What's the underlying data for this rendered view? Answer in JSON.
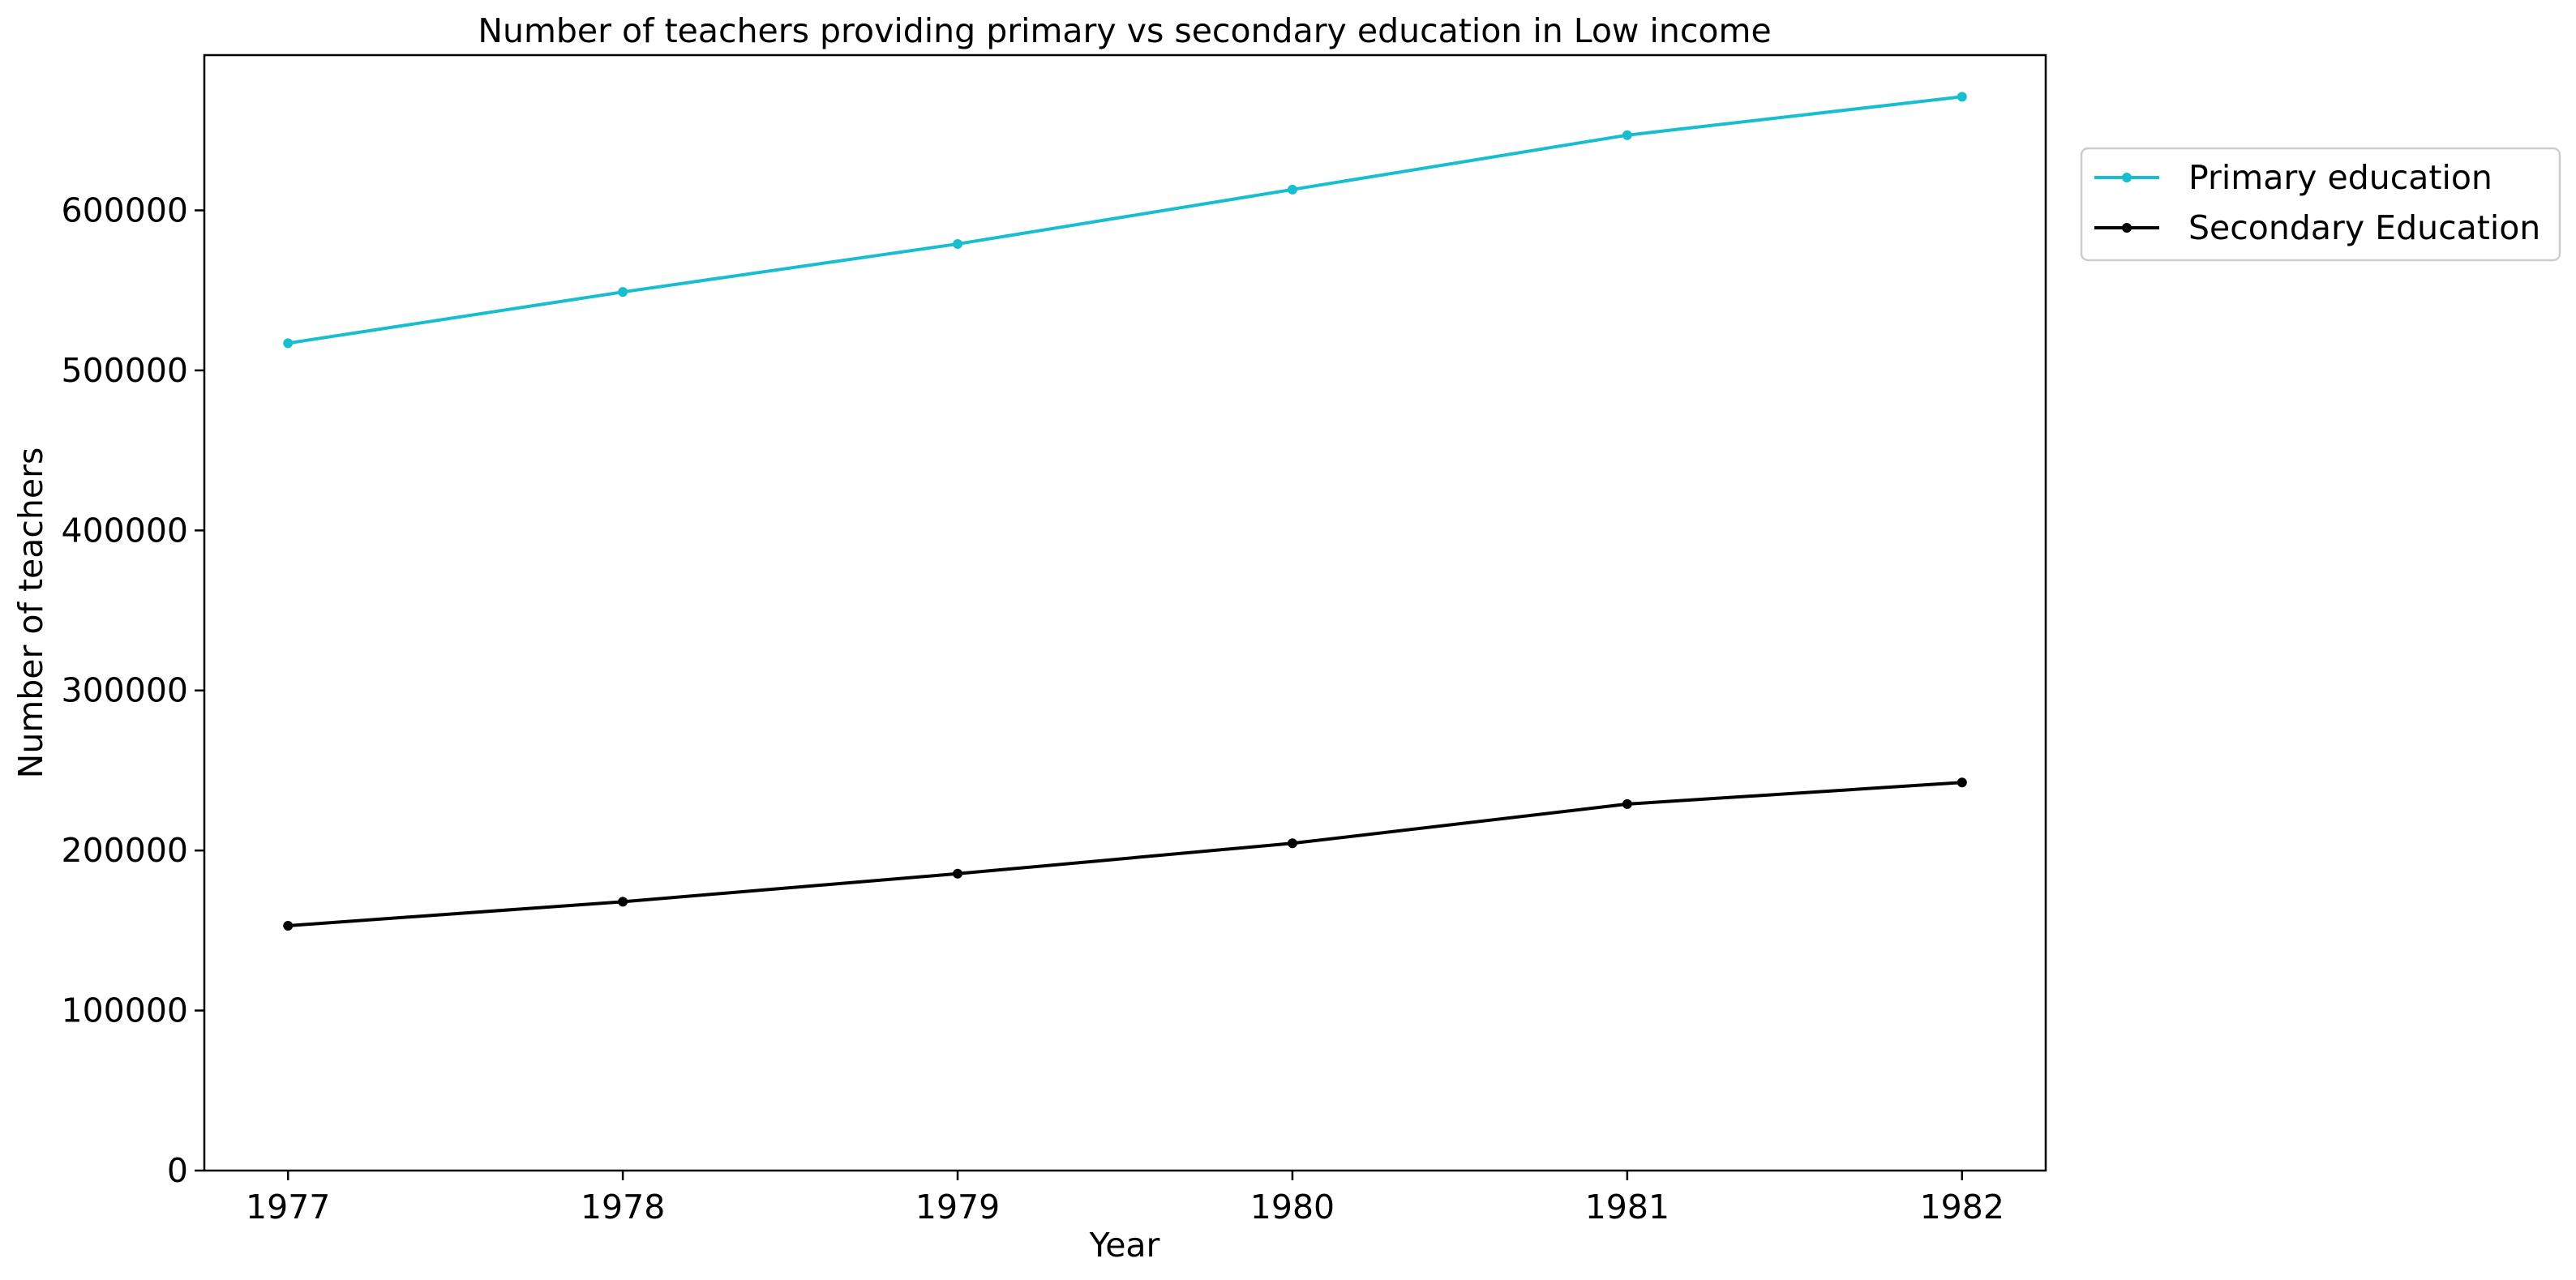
{
  "chart_data": {
    "type": "line",
    "title": "Number of teachers providing primary vs secondary education in Low income",
    "xlabel": "Year",
    "ylabel": "Number of teachers",
    "x": [
      "1977",
      "1978",
      "1979",
      "1980",
      "1981",
      "1982"
    ],
    "xlim": [
      1976.75,
      1982.25
    ],
    "ylim": [
      0,
      697000
    ],
    "yticks": [
      0,
      100000,
      200000,
      300000,
      400000,
      500000,
      600000
    ],
    "grid": false,
    "legend_position": "outside-right-top",
    "series": [
      {
        "name": "Primary education",
        "color": "#17becf",
        "marker": "dot",
        "values": [
          517000,
          549000,
          579000,
          613000,
          647000,
          671000
        ]
      },
      {
        "name": "Secondary Education",
        "color": "#000000",
        "marker": "dot",
        "values": [
          153000,
          168000,
          185500,
          204500,
          229000,
          242500
        ]
      }
    ]
  }
}
